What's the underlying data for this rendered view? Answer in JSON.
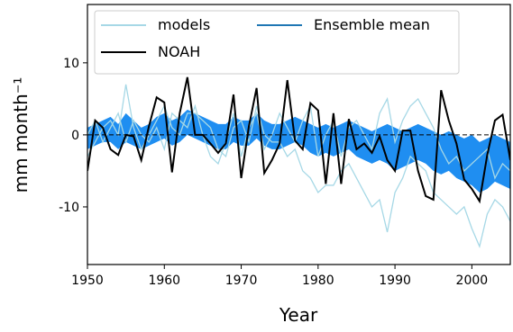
{
  "chart_data": {
    "type": "line",
    "xlabel": "Year",
    "ylabel": "mm month⁻¹",
    "x": [
      1950,
      1951,
      1952,
      1953,
      1954,
      1955,
      1956,
      1957,
      1958,
      1959,
      1960,
      1961,
      1962,
      1963,
      1964,
      1965,
      1966,
      1967,
      1968,
      1969,
      1970,
      1971,
      1972,
      1973,
      1974,
      1975,
      1976,
      1977,
      1978,
      1979,
      1980,
      1981,
      1982,
      1983,
      1984,
      1985,
      1986,
      1987,
      1988,
      1989,
      1990,
      1991,
      1992,
      1993,
      1994,
      1995,
      1996,
      1997,
      1998,
      1999,
      2000,
      2001,
      2002,
      2003,
      2004,
      2005
    ],
    "series": [
      {
        "name": "models",
        "color": "#a6d8e6",
        "lines": [
          [
            -3,
            -1,
            1,
            2,
            0,
            7,
            1,
            -2,
            0,
            2,
            4,
            1,
            0,
            3,
            3,
            2,
            1,
            -2,
            -3,
            1,
            2,
            -1,
            4,
            0,
            -1,
            -1,
            -3,
            -2,
            -5,
            -6,
            -8,
            -7,
            -7,
            -5,
            -4,
            -6,
            -8,
            -10,
            -9,
            -13.5,
            -8,
            -6,
            -3,
            -4,
            -5,
            -8,
            -9,
            -10,
            -11,
            -10,
            -13,
            -15.5,
            -11,
            -9,
            -10,
            -12
          ],
          [
            0,
            2,
            -1,
            1,
            3,
            -1,
            2,
            0,
            -1,
            1,
            -2,
            3,
            2,
            1,
            4,
            0,
            -3,
            -4,
            -1,
            3,
            -3,
            1,
            3,
            -2,
            0,
            3,
            1,
            -1,
            2,
            4,
            -3,
            0,
            2,
            -3,
            1,
            2,
            0,
            -2,
            3,
            5,
            -1,
            2,
            4,
            5,
            3,
            1,
            -2,
            -4,
            -3,
            -5,
            -4,
            -3,
            -2,
            -6,
            -4,
            -5
          ]
        ]
      },
      {
        "name": "Ensemble mean",
        "color": "#1f8ef1",
        "legend_color": "#1f77b4",
        "upper": [
          1,
          1.5,
          2,
          2.5,
          1.5,
          3,
          2,
          1,
          1.5,
          2.5,
          3,
          2,
          2.5,
          3.5,
          3,
          2.5,
          2,
          1.5,
          1.5,
          2.5,
          2,
          2,
          3,
          2,
          1.5,
          1.5,
          2,
          2.5,
          2,
          1.5,
          1,
          1.5,
          1,
          1.5,
          2,
          1.5,
          1,
          0.5,
          1,
          1.5,
          1,
          0.5,
          1,
          1.5,
          1,
          0.5,
          0,
          0.5,
          0,
          -0.5,
          0,
          -1,
          -0.5,
          0,
          -0.5,
          -1
        ],
        "lower": [
          -2,
          -1.5,
          -1,
          -1,
          -2,
          -1,
          -1.5,
          -2,
          -1.5,
          -1,
          -0.5,
          -1.5,
          -1,
          0,
          -0.5,
          -1,
          -1.5,
          -2,
          -2,
          -1,
          -1.5,
          -1.5,
          -0.5,
          -1.5,
          -2,
          -2,
          -1.5,
          -1,
          -1.5,
          -2.5,
          -3,
          -2.5,
          -3,
          -2.5,
          -2,
          -3,
          -3.5,
          -4,
          -3.5,
          -4,
          -5,
          -4.5,
          -4,
          -3.5,
          -4,
          -5,
          -5.5,
          -5,
          -6,
          -6.5,
          -7,
          -8,
          -7.5,
          -6.5,
          -7,
          -7.5
        ]
      },
      {
        "name": "NOAH",
        "color": "#000000",
        "values": [
          -5,
          2,
          1,
          -2,
          -2.8,
          0,
          -0.2,
          -3.5,
          1.2,
          5.2,
          4.5,
          -5.2,
          3,
          8,
          0,
          0,
          -1.2,
          -2.5,
          -1.2,
          5.6,
          -6,
          1.2,
          6.5,
          -5.3,
          -3.5,
          -1.2,
          7.6,
          -0.8,
          -2,
          4.4,
          3.4,
          -6.8,
          3,
          -6.8,
          2.2,
          -2,
          -1.2,
          -2.5,
          -0.2,
          -3.5,
          -5,
          0.6,
          0.6,
          -5,
          -8.5,
          -9,
          6.2,
          2,
          -1.2,
          -6.2,
          -7.5,
          -9.2,
          -2.8,
          2,
          2.8,
          -3.5
        ]
      }
    ],
    "xlim": [
      1950,
      2005
    ],
    "xticks": [
      1950,
      1960,
      1970,
      1980,
      1990,
      2000
    ],
    "ylim": [
      -18,
      18.1
    ],
    "yticks": [
      -10,
      0,
      10
    ],
    "zero_line": true,
    "legend": "upper left"
  }
}
